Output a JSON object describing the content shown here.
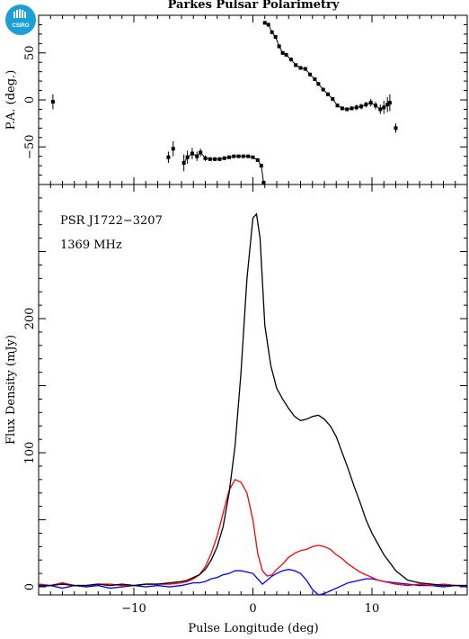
{
  "logo": {
    "text": "CSIRO",
    "color": "#1a9fd6"
  },
  "title": "Parkes Pulsar Polarimetry",
  "annotations": {
    "source": "PSR J1722−3207",
    "frequency": "1369 MHz"
  },
  "colors": {
    "total": "#000000",
    "linear": "#ff0000",
    "circular": "#0000ff"
  },
  "chart_data": [
    {
      "type": "scatter",
      "panel": "position-angle",
      "ylabel": "P.A. (deg.)",
      "xlim": [
        -18,
        18
      ],
      "ylim": [
        -90,
        90
      ],
      "y_ticks": [
        -50,
        0,
        50
      ],
      "y_tick_labels": [
        "−50",
        "0",
        "50"
      ],
      "error_bars": true,
      "points": [
        {
          "x": -16.8,
          "y": -2,
          "err": 8
        },
        {
          "x": -7.1,
          "y": -61,
          "err": 6
        },
        {
          "x": -6.7,
          "y": -52,
          "err": 8
        },
        {
          "x": -5.8,
          "y": -67,
          "err": 9
        },
        {
          "x": -5.5,
          "y": -61,
          "err": 7
        },
        {
          "x": -5.1,
          "y": -57,
          "err": 6
        },
        {
          "x": -4.7,
          "y": -60,
          "err": 5
        },
        {
          "x": -4.4,
          "y": -56,
          "err": 4
        },
        {
          "x": -4.0,
          "y": -62,
          "err": 3
        },
        {
          "x": -3.6,
          "y": -63,
          "err": 2
        },
        {
          "x": -3.2,
          "y": -63,
          "err": 2
        },
        {
          "x": -2.8,
          "y": -63,
          "err": 2
        },
        {
          "x": -2.4,
          "y": -62,
          "err": 1.5
        },
        {
          "x": -2.0,
          "y": -61,
          "err": 1.5
        },
        {
          "x": -1.6,
          "y": -60,
          "err": 1.5
        },
        {
          "x": -1.2,
          "y": -60,
          "err": 1.5
        },
        {
          "x": -0.8,
          "y": -60,
          "err": 1.5
        },
        {
          "x": -0.4,
          "y": -60,
          "err": 1.5
        },
        {
          "x": 0.0,
          "y": -61,
          "err": 1.5
        },
        {
          "x": 0.4,
          "y": -64,
          "err": 1.5
        },
        {
          "x": 0.7,
          "y": -70,
          "err": 1.5
        },
        {
          "x": 0.9,
          "y": -88,
          "err": 2
        },
        {
          "x": 1.0,
          "y": 82,
          "err": 2
        },
        {
          "x": 1.3,
          "y": 80,
          "err": 2
        },
        {
          "x": 1.6,
          "y": 72,
          "err": 2
        },
        {
          "x": 1.9,
          "y": 67,
          "err": 2
        },
        {
          "x": 2.2,
          "y": 57,
          "err": 2
        },
        {
          "x": 2.5,
          "y": 50,
          "err": 2
        },
        {
          "x": 2.8,
          "y": 48,
          "err": 2
        },
        {
          "x": 3.2,
          "y": 43,
          "err": 2
        },
        {
          "x": 3.6,
          "y": 37,
          "err": 2
        },
        {
          "x": 4.0,
          "y": 34,
          "err": 2
        },
        {
          "x": 4.4,
          "y": 33,
          "err": 2
        },
        {
          "x": 4.8,
          "y": 27,
          "err": 2
        },
        {
          "x": 5.2,
          "y": 22,
          "err": 2
        },
        {
          "x": 5.5,
          "y": 17,
          "err": 2
        },
        {
          "x": 5.9,
          "y": 11,
          "err": 2
        },
        {
          "x": 6.3,
          "y": 6,
          "err": 2
        },
        {
          "x": 6.7,
          "y": 1,
          "err": 2
        },
        {
          "x": 7.1,
          "y": -6,
          "err": 2
        },
        {
          "x": 7.5,
          "y": -9,
          "err": 2
        },
        {
          "x": 7.9,
          "y": -10,
          "err": 2
        },
        {
          "x": 8.3,
          "y": -9,
          "err": 2
        },
        {
          "x": 8.7,
          "y": -8,
          "err": 3
        },
        {
          "x": 9.1,
          "y": -7,
          "err": 3
        },
        {
          "x": 9.5,
          "y": -5,
          "err": 3
        },
        {
          "x": 9.9,
          "y": -3,
          "err": 4
        },
        {
          "x": 10.3,
          "y": -6,
          "err": 4
        },
        {
          "x": 10.7,
          "y": -10,
          "err": 5
        },
        {
          "x": 11.0,
          "y": -8,
          "err": 7
        },
        {
          "x": 11.3,
          "y": -5,
          "err": 8
        },
        {
          "x": 11.5,
          "y": -3,
          "err": 9
        },
        {
          "x": 12.0,
          "y": -30,
          "err": 5
        }
      ]
    },
    {
      "type": "line",
      "panel": "profile",
      "xlabel": "Pulse Longitude (deg)",
      "ylabel": "Flux Density (mJy)",
      "xlim": [
        -18,
        18
      ],
      "ylim": [
        -6,
        300
      ],
      "x_ticks": [
        -10,
        0,
        10
      ],
      "x_tick_labels": [
        "−10",
        "0",
        "10"
      ],
      "y_ticks": [
        0,
        100,
        200
      ],
      "y_tick_labels": [
        "0",
        "100",
        "200"
      ],
      "series": [
        {
          "key": "total",
          "x": [
            -18,
            -17,
            -16,
            -15,
            -14,
            -13,
            -12,
            -11,
            -10,
            -9,
            -8,
            -7,
            -6,
            -5.5,
            -5,
            -4.5,
            -4,
            -3.5,
            -3,
            -2.5,
            -2,
            -1.5,
            -1,
            -0.5,
            0,
            0.3,
            0.6,
            1,
            1.5,
            2,
            2.5,
            3,
            3.5,
            4,
            4.5,
            5,
            5.5,
            6,
            6.5,
            7,
            7.5,
            8,
            8.5,
            9,
            9.5,
            10,
            10.5,
            11,
            12,
            13,
            14,
            15,
            16,
            17,
            18
          ],
          "y": [
            1,
            1,
            2,
            1,
            1,
            2,
            1,
            2,
            1,
            2,
            2,
            3,
            4,
            5,
            7,
            9,
            13,
            20,
            30,
            45,
            70,
            105,
            160,
            230,
            275,
            278,
            260,
            195,
            165,
            148,
            140,
            133,
            127,
            124,
            125,
            127,
            128,
            125,
            120,
            112,
            100,
            88,
            75,
            63,
            50,
            40,
            32,
            24,
            12,
            5,
            3,
            2,
            1,
            1,
            1
          ]
        },
        {
          "key": "linear",
          "x": [
            -18,
            -17,
            -16,
            -15,
            -14,
            -13,
            -12,
            -11,
            -10,
            -9,
            -8,
            -7,
            -6,
            -5.5,
            -5,
            -4.5,
            -4,
            -3.5,
            -3,
            -2.5,
            -2,
            -1.5,
            -1,
            -0.5,
            0,
            0.4,
            0.8,
            1.2,
            1.6,
            2,
            2.5,
            3,
            3.5,
            4,
            4.5,
            5,
            5.5,
            6,
            6.5,
            7,
            7.5,
            8,
            8.5,
            9,
            9.5,
            10,
            10.5,
            11,
            12,
            13,
            14,
            15,
            16,
            17,
            18
          ],
          "y": [
            2,
            1,
            3,
            1,
            1,
            2,
            2,
            1,
            1,
            2,
            2,
            2,
            3,
            4,
            6,
            9,
            15,
            25,
            38,
            55,
            72,
            80,
            78,
            70,
            50,
            25,
            12,
            8,
            9,
            13,
            17,
            22,
            25,
            27,
            28,
            30,
            31,
            30,
            28,
            24,
            21,
            17,
            14,
            11,
            9,
            7,
            5,
            4,
            2,
            1,
            2,
            1,
            2,
            1,
            1
          ]
        },
        {
          "key": "circular",
          "x": [
            -18,
            -17,
            -16,
            -15,
            -14,
            -13,
            -12,
            -11,
            -10,
            -9,
            -8,
            -7,
            -6,
            -5.5,
            -5,
            -4.5,
            -4,
            -3.5,
            -3,
            -2.5,
            -2,
            -1.5,
            -1,
            -0.5,
            0,
            0.4,
            0.8,
            1.2,
            1.6,
            2,
            2.5,
            3,
            3.5,
            4,
            4.5,
            5,
            5.5,
            6,
            6.5,
            7,
            7.5,
            8,
            8.5,
            9,
            9.5,
            10,
            10.5,
            11,
            12,
            13,
            14,
            15,
            16,
            17,
            18
          ],
          "y": [
            0,
            1,
            -1,
            1,
            0,
            1,
            -1,
            0,
            1,
            0,
            1,
            0,
            1,
            2,
            3,
            3,
            4,
            6,
            7,
            9,
            10,
            12,
            12,
            11,
            10,
            6,
            2,
            5,
            8,
            10,
            12,
            13,
            12,
            10,
            5,
            -2,
            -6,
            -5,
            -3,
            -1,
            1,
            3,
            4,
            5,
            6,
            6,
            5,
            4,
            3,
            2,
            1,
            1,
            0,
            1,
            0
          ]
        }
      ]
    }
  ]
}
